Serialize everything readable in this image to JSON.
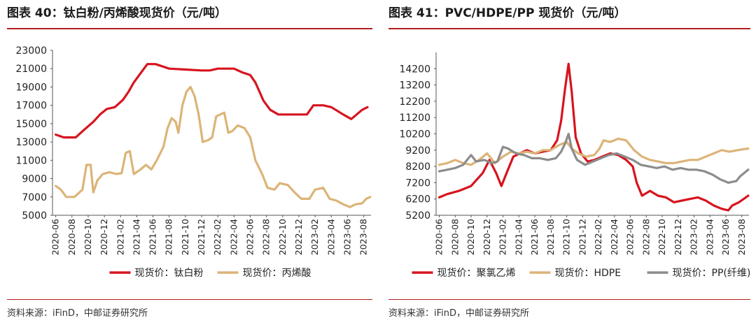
{
  "panels": [
    {
      "title": "图表 40：钛白粉/丙烯酸现货价（元/吨）",
      "source": "资料来源：iFinD，中邮证券研究所"
    },
    {
      "title": "图表 41：PVC/HDPE/PP 现货价（元/吨）",
      "source": "资料来源：iFinD，中邮证券研究所"
    }
  ],
  "chart_data": [
    {
      "type": "line",
      "title": "图表 40：钛白粉/丙烯酸现货价（元/吨）",
      "xlabel": "",
      "ylabel": "",
      "ylim": [
        5000,
        23000
      ],
      "yticks": [
        5000,
        7000,
        9000,
        11000,
        13000,
        15000,
        17000,
        19000,
        21000,
        23000
      ],
      "x_ticks": [
        "2020-06",
        "2020-08",
        "2020-10",
        "2020-12",
        "2021-02",
        "2021-04",
        "2021-06",
        "2021-08",
        "2021-10",
        "2021-12",
        "2022-02",
        "2022-04",
        "2022-06",
        "2022-08",
        "2022-10",
        "2022-12",
        "2023-02",
        "2023-04",
        "2023-06",
        "2023-08"
      ],
      "grid": false,
      "legend_position": "bottom",
      "series": [
        {
          "name": "现货价：钛白粉",
          "color": "#d7141e",
          "points": [
            [
              "2020-06-01",
              13800
            ],
            [
              "2020-07-01",
              13500
            ],
            [
              "2020-08-15",
              13500
            ],
            [
              "2020-09-15",
              14300
            ],
            [
              "2020-10-20",
              15200
            ],
            [
              "2020-11-15",
              16000
            ],
            [
              "2020-12-10",
              16600
            ],
            [
              "2021-01-10",
              16800
            ],
            [
              "2021-02-10",
              17600
            ],
            [
              "2021-03-01",
              18500
            ],
            [
              "2021-03-20",
              19500
            ],
            [
              "2021-04-15",
              20500
            ],
            [
              "2021-05-10",
              21500
            ],
            [
              "2021-06-10",
              21500
            ],
            [
              "2021-07-01",
              21300
            ],
            [
              "2021-08-01",
              21000
            ],
            [
              "2021-10-01",
              20900
            ],
            [
              "2021-12-01",
              20800
            ],
            [
              "2022-01-01",
              20800
            ],
            [
              "2022-02-01",
              21000
            ],
            [
              "2022-04-01",
              21000
            ],
            [
              "2022-05-01",
              20600
            ],
            [
              "2022-06-01",
              20300
            ],
            [
              "2022-06-20",
              19500
            ],
            [
              "2022-07-05",
              18500
            ],
            [
              "2022-07-20",
              17500
            ],
            [
              "2022-08-15",
              16500
            ],
            [
              "2022-09-15",
              16000
            ],
            [
              "2022-12-01",
              16000
            ],
            [
              "2023-01-01",
              16000
            ],
            [
              "2023-01-25",
              17000
            ],
            [
              "2023-03-01",
              17000
            ],
            [
              "2023-04-01",
              16800
            ],
            [
              "2023-05-15",
              16000
            ],
            [
              "2023-06-15",
              15500
            ],
            [
              "2023-07-05",
              16000
            ],
            [
              "2023-07-25",
              16500
            ],
            [
              "2023-08-15",
              16800
            ]
          ]
        },
        {
          "name": "现货价：丙烯酸",
          "color": "#dcb478",
          "points": [
            [
              "2020-06-01",
              8200
            ],
            [
              "2020-06-20",
              7800
            ],
            [
              "2020-07-10",
              7000
            ],
            [
              "2020-08-10",
              7000
            ],
            [
              "2020-09-10",
              7800
            ],
            [
              "2020-09-25",
              10500
            ],
            [
              "2020-10-10",
              10500
            ],
            [
              "2020-10-20",
              7500
            ],
            [
              "2020-11-05",
              8800
            ],
            [
              "2020-11-25",
              9500
            ],
            [
              "2020-12-20",
              9700
            ],
            [
              "2021-01-15",
              9500
            ],
            [
              "2021-02-05",
              9600
            ],
            [
              "2021-02-20",
              11800
            ],
            [
              "2021-03-05",
              12000
            ],
            [
              "2021-03-20",
              9500
            ],
            [
              "2021-04-15",
              10000
            ],
            [
              "2021-05-05",
              10500
            ],
            [
              "2021-05-25",
              10000
            ],
            [
              "2021-06-15",
              11000
            ],
            [
              "2021-07-10",
              12500
            ],
            [
              "2021-07-25",
              14500
            ],
            [
              "2021-08-10",
              15600
            ],
            [
              "2021-08-25",
              15200
            ],
            [
              "2021-09-05",
              14000
            ],
            [
              "2021-09-20",
              17000
            ],
            [
              "2021-10-05",
              18500
            ],
            [
              "2021-10-20",
              19000
            ],
            [
              "2021-11-05",
              18000
            ],
            [
              "2021-11-20",
              16000
            ],
            [
              "2021-12-05",
              13000
            ],
            [
              "2021-12-25",
              13200
            ],
            [
              "2022-01-10",
              13500
            ],
            [
              "2022-01-25",
              15800
            ],
            [
              "2022-02-10",
              16000
            ],
            [
              "2022-02-25",
              16200
            ],
            [
              "2022-03-10",
              14000
            ],
            [
              "2022-03-25",
              14200
            ],
            [
              "2022-04-15",
              14800
            ],
            [
              "2022-05-10",
              14500
            ],
            [
              "2022-06-01",
              13500
            ],
            [
              "2022-06-20",
              11000
            ],
            [
              "2022-07-15",
              9500
            ],
            [
              "2022-08-05",
              8000
            ],
            [
              "2022-09-01",
              7800
            ],
            [
              "2022-09-20",
              8500
            ],
            [
              "2022-10-20",
              8300
            ],
            [
              "2022-11-15",
              7500
            ],
            [
              "2022-12-10",
              6800
            ],
            [
              "2023-01-10",
              6800
            ],
            [
              "2023-02-01",
              7800
            ],
            [
              "2023-03-01",
              8000
            ],
            [
              "2023-03-25",
              6800
            ],
            [
              "2023-04-20",
              6600
            ],
            [
              "2023-05-15",
              6200
            ],
            [
              "2023-06-10",
              5900
            ],
            [
              "2023-07-01",
              6200
            ],
            [
              "2023-07-25",
              6300
            ],
            [
              "2023-08-10",
              6800
            ],
            [
              "2023-08-25",
              7000
            ]
          ]
        }
      ]
    },
    {
      "type": "line",
      "title": "图表 41：PVC/HDPE/PP 现货价（元/吨）",
      "xlabel": "",
      "ylabel": "",
      "ylim": [
        5200,
        15200
      ],
      "yticks": [
        5200,
        6200,
        7200,
        8200,
        9200,
        10200,
        11200,
        12200,
        13200,
        14200
      ],
      "x_ticks": [
        "2020-06",
        "2020-08",
        "2020-10",
        "2020-12",
        "2021-02",
        "2021-04",
        "2021-06",
        "2021-08",
        "2021-10",
        "2021-12",
        "2022-02",
        "2022-04",
        "2022-06",
        "2022-08",
        "2022-10",
        "2022-12",
        "2023-02",
        "2023-04",
        "2023-06",
        "2023-08"
      ],
      "grid": false,
      "legend_position": "bottom",
      "series": [
        {
          "name": "现货价：聚氯乙烯",
          "color": "#d7141e",
          "points": [
            [
              "2020-06-01",
              6300
            ],
            [
              "2020-07-01",
              6500
            ],
            [
              "2020-08-15",
              6700
            ],
            [
              "2020-10-01",
              7000
            ],
            [
              "2020-11-15",
              7800
            ],
            [
              "2020-12-10",
              8600
            ],
            [
              "2021-01-05",
              7800
            ],
            [
              "2021-01-25",
              7000
            ],
            [
              "2021-02-15",
              7800
            ],
            [
              "2021-03-10",
              8800
            ],
            [
              "2021-04-05",
              9000
            ],
            [
              "2021-05-01",
              9200
            ],
            [
              "2021-06-01",
              9000
            ],
            [
              "2021-07-01",
              9100
            ],
            [
              "2021-08-01",
              9200
            ],
            [
              "2021-08-25",
              9800
            ],
            [
              "2021-09-10",
              11000
            ],
            [
              "2021-09-25",
              13000
            ],
            [
              "2021-10-08",
              14500
            ],
            [
              "2021-10-20",
              12800
            ],
            [
              "2021-11-05",
              10000
            ],
            [
              "2021-11-25",
              9000
            ],
            [
              "2021-12-20",
              8500
            ],
            [
              "2022-01-15",
              8600
            ],
            [
              "2022-02-15",
              8800
            ],
            [
              "2022-03-15",
              9000
            ],
            [
              "2022-04-15",
              8900
            ],
            [
              "2022-05-15",
              8600
            ],
            [
              "2022-06-10",
              8200
            ],
            [
              "2022-06-25",
              7200
            ],
            [
              "2022-07-15",
              6400
            ],
            [
              "2022-08-15",
              6700
            ],
            [
              "2022-09-15",
              6400
            ],
            [
              "2022-10-15",
              6300
            ],
            [
              "2022-11-15",
              6000
            ],
            [
              "2022-12-15",
              6100
            ],
            [
              "2023-01-15",
              6200
            ],
            [
              "2023-02-15",
              6300
            ],
            [
              "2023-03-15",
              6100
            ],
            [
              "2023-04-15",
              5800
            ],
            [
              "2023-05-15",
              5600
            ],
            [
              "2023-06-10",
              5500
            ],
            [
              "2023-06-25",
              5800
            ],
            [
              "2023-07-20",
              6000
            ],
            [
              "2023-08-25",
              6400
            ]
          ]
        },
        {
          "name": "现货价：HDPE",
          "color": "#dcb478",
          "points": [
            [
              "2020-06-01",
              8300
            ],
            [
              "2020-07-01",
              8400
            ],
            [
              "2020-08-01",
              8600
            ],
            [
              "2020-09-01",
              8400
            ],
            [
              "2020-10-01",
              8300
            ],
            [
              "2020-11-01",
              8600
            ],
            [
              "2020-12-01",
              9000
            ],
            [
              "2021-01-01",
              8400
            ],
            [
              "2021-02-01",
              8800
            ],
            [
              "2021-03-01",
              9100
            ],
            [
              "2021-04-01",
              9000
            ],
            [
              "2021-05-01",
              9100
            ],
            [
              "2021-06-01",
              9000
            ],
            [
              "2021-07-01",
              9200
            ],
            [
              "2021-08-01",
              9200
            ],
            [
              "2021-09-01",
              9500
            ],
            [
              "2021-10-01",
              9700
            ],
            [
              "2021-10-20",
              9300
            ],
            [
              "2021-11-15",
              9000
            ],
            [
              "2021-12-15",
              8800
            ],
            [
              "2022-01-15",
              8900
            ],
            [
              "2022-02-05",
              9300
            ],
            [
              "2022-02-20",
              9800
            ],
            [
              "2022-03-15",
              9700
            ],
            [
              "2022-04-15",
              9900
            ],
            [
              "2022-05-15",
              9800
            ],
            [
              "2022-06-15",
              9200
            ],
            [
              "2022-07-15",
              8800
            ],
            [
              "2022-08-15",
              8600
            ],
            [
              "2022-09-15",
              8500
            ],
            [
              "2022-10-15",
              8400
            ],
            [
              "2022-11-15",
              8400
            ],
            [
              "2022-12-15",
              8500
            ],
            [
              "2023-01-15",
              8600
            ],
            [
              "2023-02-15",
              8600
            ],
            [
              "2023-03-15",
              8800
            ],
            [
              "2023-04-15",
              9000
            ],
            [
              "2023-05-15",
              9200
            ],
            [
              "2023-06-15",
              9100
            ],
            [
              "2023-07-15",
              9200
            ],
            [
              "2023-08-25",
              9300
            ]
          ]
        },
        {
          "name": "现货价：PP(纤维)",
          "color": "#8c8c8c",
          "points": [
            [
              "2020-06-01",
              7900
            ],
            [
              "2020-07-01",
              8000
            ],
            [
              "2020-08-01",
              8100
            ],
            [
              "2020-09-01",
              8300
            ],
            [
              "2020-10-01",
              8900
            ],
            [
              "2020-10-20",
              8500
            ],
            [
              "2020-11-20",
              8600
            ],
            [
              "2020-12-20",
              8400
            ],
            [
              "2021-01-10",
              8500
            ],
            [
              "2021-02-01",
              9400
            ],
            [
              "2021-02-20",
              9300
            ],
            [
              "2021-03-20",
              9000
            ],
            [
              "2021-04-20",
              8900
            ],
            [
              "2021-05-20",
              8700
            ],
            [
              "2021-06-20",
              8700
            ],
            [
              "2021-07-20",
              8600
            ],
            [
              "2021-08-20",
              8700
            ],
            [
              "2021-09-10",
              9100
            ],
            [
              "2021-09-25",
              9600
            ],
            [
              "2021-10-08",
              10200
            ],
            [
              "2021-10-20",
              9300
            ],
            [
              "2021-11-10",
              8600
            ],
            [
              "2021-12-10",
              8300
            ],
            [
              "2022-01-10",
              8500
            ],
            [
              "2022-02-10",
              8700
            ],
            [
              "2022-03-10",
              8900
            ],
            [
              "2022-04-10",
              9000
            ],
            [
              "2022-05-10",
              8800
            ],
            [
              "2022-06-10",
              8600
            ],
            [
              "2022-07-10",
              8300
            ],
            [
              "2022-08-10",
              8200
            ],
            [
              "2022-09-10",
              8100
            ],
            [
              "2022-10-10",
              8200
            ],
            [
              "2022-11-10",
              8000
            ],
            [
              "2022-12-10",
              8100
            ],
            [
              "2023-01-10",
              8000
            ],
            [
              "2023-02-10",
              8000
            ],
            [
              "2023-03-10",
              7900
            ],
            [
              "2023-04-10",
              7700
            ],
            [
              "2023-05-10",
              7400
            ],
            [
              "2023-06-10",
              7200
            ],
            [
              "2023-07-10",
              7300
            ],
            [
              "2023-07-25",
              7600
            ],
            [
              "2023-08-25",
              8000
            ]
          ]
        }
      ]
    }
  ]
}
